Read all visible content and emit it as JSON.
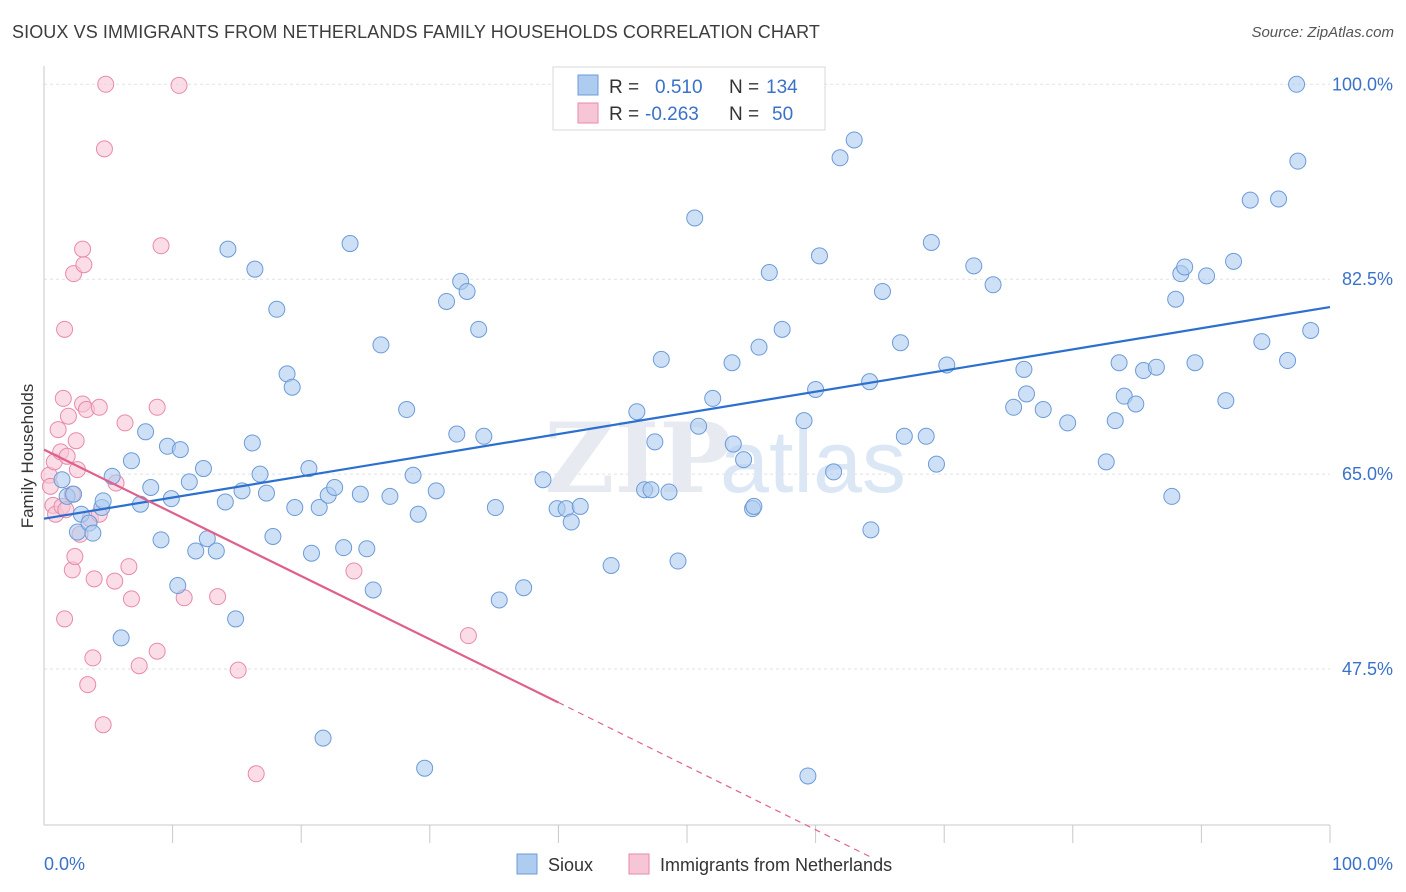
{
  "title": "SIOUX VS IMMIGRANTS FROM NETHERLANDS FAMILY HOUSEHOLDS CORRELATION CHART",
  "source": "Source: ZipAtlas.com",
  "watermark": {
    "zip": "ZIP",
    "atlas": "atlas"
  },
  "colors": {
    "blue_fill": "#aecbf0",
    "blue_stroke": "#6c9bd8",
    "blue_line": "#2b6fcf",
    "blue_text": "#3a72c8",
    "pink_fill": "#f7c6d6",
    "pink_stroke": "#e98aaa",
    "pink_line": "#e0608c",
    "grid": "#dde2ea",
    "axis": "#c8c8c8"
  },
  "legend_top": {
    "rows": [
      {
        "r_label": "R =",
        "r_value": "0.510",
        "n_label": "N =",
        "n_value": "134"
      },
      {
        "r_label": "R =",
        "r_value": "-0.263",
        "n_label": "N =",
        "n_value": "50"
      }
    ]
  },
  "legend_bottom": [
    "Sioux",
    "Immigrants from Netherlands"
  ],
  "chart_data": {
    "type": "scatter",
    "title": "SIOUX VS IMMIGRANTS FROM NETHERLANDS FAMILY HOUSEHOLDS CORRELATION CHART",
    "xlabel": "",
    "ylabel": "Family Households",
    "xlim": [
      0,
      100
    ],
    "ylim": [
      33.5,
      102
    ],
    "x_tick_labels": [
      "0.0%",
      "100.0%"
    ],
    "y_ticks": [
      47.5,
      65.0,
      82.5,
      100.0
    ],
    "y_tick_labels": [
      "47.5%",
      "65.0%",
      "82.5%",
      "100.0%"
    ],
    "grid": true,
    "legend_position": "top-center",
    "series": [
      {
        "name": "Sioux",
        "color": "#aecbf0",
        "r": 0.51,
        "n": 134,
        "trend": {
          "x": [
            0,
            100
          ],
          "y": [
            61.0,
            80.0
          ]
        },
        "points": [
          [
            1.4,
            64.5
          ],
          [
            1.8,
            63.0
          ],
          [
            2.3,
            63.2
          ],
          [
            2.6,
            59.8
          ],
          [
            2.9,
            61.4
          ],
          [
            3.5,
            60.6
          ],
          [
            3.8,
            59.7
          ],
          [
            4.5,
            62.0
          ],
          [
            4.6,
            62.6
          ],
          [
            5.3,
            64.8
          ],
          [
            6.0,
            50.3
          ],
          [
            6.8,
            66.2
          ],
          [
            7.5,
            62.3
          ],
          [
            7.9,
            68.8
          ],
          [
            8.3,
            63.8
          ],
          [
            9.1,
            59.1
          ],
          [
            9.6,
            67.5
          ],
          [
            9.9,
            62.8
          ],
          [
            10.4,
            55.0
          ],
          [
            10.6,
            67.2
          ],
          [
            11.3,
            64.3
          ],
          [
            11.8,
            58.1
          ],
          [
            12.4,
            65.5
          ],
          [
            12.7,
            59.2
          ],
          [
            13.4,
            58.1
          ],
          [
            14.1,
            62.5
          ],
          [
            14.3,
            85.2
          ],
          [
            14.9,
            52.0
          ],
          [
            15.4,
            63.5
          ],
          [
            16.2,
            67.8
          ],
          [
            16.4,
            83.4
          ],
          [
            16.8,
            65.0
          ],
          [
            17.3,
            63.3
          ],
          [
            17.8,
            59.4
          ],
          [
            18.1,
            79.8
          ],
          [
            18.9,
            74.0
          ],
          [
            19.3,
            72.8
          ],
          [
            19.5,
            62.0
          ],
          [
            20.6,
            65.5
          ],
          [
            20.8,
            57.9
          ],
          [
            21.4,
            62.0
          ],
          [
            21.7,
            41.3
          ],
          [
            22.1,
            63.1
          ],
          [
            22.6,
            63.8
          ],
          [
            23.3,
            58.4
          ],
          [
            23.8,
            85.7
          ],
          [
            24.6,
            63.2
          ],
          [
            25.1,
            58.3
          ],
          [
            25.6,
            54.6
          ],
          [
            26.2,
            76.6
          ],
          [
            26.9,
            63.0
          ],
          [
            28.2,
            70.8
          ],
          [
            28.7,
            64.9
          ],
          [
            29.1,
            61.4
          ],
          [
            29.6,
            38.6
          ],
          [
            30.5,
            63.5
          ],
          [
            31.3,
            80.5
          ],
          [
            32.1,
            68.6
          ],
          [
            32.4,
            82.3
          ],
          [
            32.9,
            81.4
          ],
          [
            33.8,
            78.0
          ],
          [
            34.2,
            68.4
          ],
          [
            35.1,
            62.0
          ],
          [
            35.4,
            53.7
          ],
          [
            37.3,
            54.8
          ],
          [
            38.8,
            64.5
          ],
          [
            39.9,
            61.9
          ],
          [
            40.6,
            61.9
          ],
          [
            41.0,
            60.7
          ],
          [
            41.7,
            62.1
          ],
          [
            44.1,
            56.8
          ],
          [
            46.1,
            70.6
          ],
          [
            46.7,
            63.6
          ],
          [
            47.5,
            67.9
          ],
          [
            48.0,
            75.3
          ],
          [
            48.6,
            63.4
          ],
          [
            49.3,
            57.2
          ],
          [
            50.6,
            88.0
          ],
          [
            50.9,
            69.3
          ],
          [
            52.0,
            71.8
          ],
          [
            53.5,
            75.0
          ],
          [
            54.4,
            66.3
          ],
          [
            55.1,
            61.9
          ],
          [
            55.6,
            76.4
          ],
          [
            56.4,
            83.1
          ],
          [
            57.4,
            78.0
          ],
          [
            59.1,
            69.8
          ],
          [
            60.0,
            72.6
          ],
          [
            61.4,
            65.2
          ],
          [
            61.9,
            93.4
          ],
          [
            63.0,
            95.0
          ],
          [
            64.2,
            73.3
          ],
          [
            64.3,
            60.0
          ],
          [
            65.2,
            81.4
          ],
          [
            66.6,
            76.8
          ],
          [
            66.9,
            68.4
          ],
          [
            68.6,
            68.4
          ],
          [
            69.0,
            85.8
          ],
          [
            69.4,
            65.9
          ],
          [
            70.2,
            74.8
          ],
          [
            72.3,
            83.7
          ],
          [
            73.8,
            82.0
          ],
          [
            75.4,
            71.0
          ],
          [
            76.2,
            74.4
          ],
          [
            76.4,
            72.2
          ],
          [
            77.7,
            70.8
          ],
          [
            79.6,
            69.6
          ],
          [
            82.6,
            66.1
          ],
          [
            83.3,
            69.8
          ],
          [
            83.6,
            75.0
          ],
          [
            84.0,
            72.0
          ],
          [
            84.9,
            71.3
          ],
          [
            85.5,
            74.3
          ],
          [
            86.5,
            74.6
          ],
          [
            87.7,
            63.0
          ],
          [
            88.0,
            80.7
          ],
          [
            88.4,
            83.0
          ],
          [
            88.7,
            83.6
          ],
          [
            89.5,
            75.0
          ],
          [
            90.4,
            82.8
          ],
          [
            91.9,
            71.6
          ],
          [
            92.5,
            84.1
          ],
          [
            93.8,
            89.6
          ],
          [
            94.7,
            76.9
          ],
          [
            96.0,
            89.7
          ],
          [
            96.7,
            75.2
          ],
          [
            97.4,
            100.0
          ],
          [
            97.5,
            93.1
          ],
          [
            98.5,
            77.9
          ],
          [
            59.4,
            37.9
          ],
          [
            53.6,
            67.7
          ],
          [
            47.2,
            63.6
          ],
          [
            55.2,
            62.1
          ],
          [
            60.3,
            84.6
          ]
        ]
      },
      {
        "name": "Immigrants from Netherlands",
        "color": "#f7c6d6",
        "r": -0.263,
        "n": 50,
        "trend": {
          "x": [
            0,
            40
          ],
          "y": [
            67.2,
            44.5
          ]
        },
        "trend_dashed": {
          "x": [
            40,
            64.5
          ],
          "y": [
            44.5,
            30.5
          ]
        },
        "points": [
          [
            0.4,
            64.9
          ],
          [
            0.5,
            63.9
          ],
          [
            0.7,
            62.2
          ],
          [
            0.8,
            66.1
          ],
          [
            0.9,
            61.4
          ],
          [
            1.1,
            69.0
          ],
          [
            1.3,
            67.0
          ],
          [
            1.4,
            62.1
          ],
          [
            1.5,
            71.8
          ],
          [
            1.6,
            52.0
          ],
          [
            1.6,
            78.0
          ],
          [
            1.7,
            61.8
          ],
          [
            1.8,
            66.6
          ],
          [
            1.9,
            70.2
          ],
          [
            2.2,
            63.2
          ],
          [
            2.2,
            56.4
          ],
          [
            2.3,
            83.0
          ],
          [
            2.4,
            57.6
          ],
          [
            2.5,
            68.0
          ],
          [
            2.6,
            65.4
          ],
          [
            2.8,
            59.6
          ],
          [
            3.0,
            85.2
          ],
          [
            3.0,
            71.3
          ],
          [
            3.1,
            83.8
          ],
          [
            3.3,
            70.8
          ],
          [
            3.4,
            46.1
          ],
          [
            3.6,
            61.0
          ],
          [
            3.8,
            48.5
          ],
          [
            3.9,
            55.6
          ],
          [
            4.3,
            71.0
          ],
          [
            4.3,
            61.4
          ],
          [
            4.6,
            42.5
          ],
          [
            4.7,
            94.2
          ],
          [
            4.8,
            100.0
          ],
          [
            5.5,
            55.4
          ],
          [
            5.6,
            64.2
          ],
          [
            6.3,
            69.6
          ],
          [
            6.6,
            56.7
          ],
          [
            6.8,
            53.8
          ],
          [
            7.4,
            47.8
          ],
          [
            8.8,
            49.1
          ],
          [
            8.8,
            71.0
          ],
          [
            9.1,
            85.5
          ],
          [
            10.5,
            99.9
          ],
          [
            10.9,
            53.9
          ],
          [
            13.5,
            54.0
          ],
          [
            15.1,
            47.4
          ],
          [
            16.5,
            38.1
          ],
          [
            24.1,
            56.3
          ],
          [
            33.0,
            50.5
          ]
        ]
      }
    ]
  }
}
